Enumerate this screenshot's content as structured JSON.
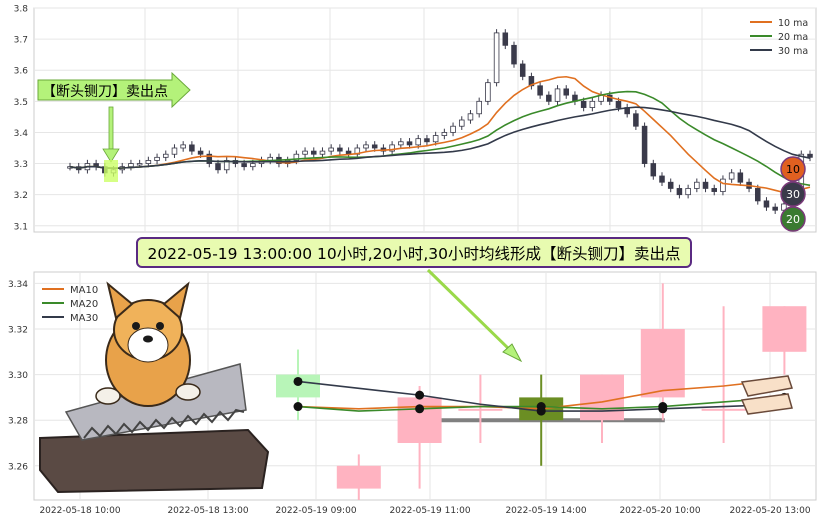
{
  "top_chart": {
    "type": "candlestick",
    "ylim": [
      3.08,
      3.8
    ],
    "yticks": [
      "3.1",
      "3.2",
      "3.3",
      "3.4",
      "3.5",
      "3.6",
      "3.7",
      "3.8"
    ],
    "legend": [
      {
        "label": "10 ma",
        "color": "#e07020"
      },
      {
        "label": "20 ma",
        "color": "#3a8a2a"
      },
      {
        "label": "30 ma",
        "color": "#333a4a"
      }
    ],
    "legend_position": "top-right",
    "grid": true,
    "signal_label": "【断头铡刀】卖出点",
    "ma_badges": [
      "10",
      "30",
      "20"
    ],
    "ma_badge_colors": [
      "#e06020",
      "#3a3a4a",
      "#3a7a30"
    ],
    "close_series": [
      3.29,
      3.28,
      3.3,
      3.29,
      3.27,
      3.28,
      3.29,
      3.3,
      3.3,
      3.31,
      3.32,
      3.33,
      3.35,
      3.36,
      3.34,
      3.33,
      3.3,
      3.28,
      3.31,
      3.3,
      3.29,
      3.3,
      3.31,
      3.32,
      3.3,
      3.31,
      3.33,
      3.34,
      3.33,
      3.34,
      3.35,
      3.34,
      3.33,
      3.35,
      3.36,
      3.35,
      3.34,
      3.36,
      3.37,
      3.36,
      3.38,
      3.37,
      3.39,
      3.4,
      3.42,
      3.44,
      3.46,
      3.5,
      3.56,
      3.72,
      3.68,
      3.62,
      3.58,
      3.55,
      3.52,
      3.5,
      3.54,
      3.52,
      3.5,
      3.48,
      3.5,
      3.52,
      3.5,
      3.48,
      3.46,
      3.42,
      3.3,
      3.26,
      3.24,
      3.22,
      3.2,
      3.22,
      3.24,
      3.22,
      3.21,
      3.25,
      3.27,
      3.24,
      3.22,
      3.18,
      3.16,
      3.15,
      3.17,
      3.2,
      3.33,
      3.32
    ]
  },
  "chart_data": {
    "type": "candlestick",
    "ylim": [
      3.245,
      3.345
    ],
    "yticks": [
      "3.26",
      "3.28",
      "3.30",
      "3.32",
      "3.34"
    ],
    "xticks": [
      "2022-05-18 10:00",
      "2022-05-18 13:00",
      "2022-05-19 09:00",
      "2022-05-19 11:00",
      "2022-05-19 14:00",
      "2022-05-20 10:00",
      "2022-05-20 13:00"
    ],
    "legend": [
      {
        "label": "MA10",
        "color": "#e07020"
      },
      {
        "label": "MA20",
        "color": "#3a8a2a"
      },
      {
        "label": "MA30",
        "color": "#333a4a"
      }
    ],
    "legend_position": "top-left",
    "grid": true,
    "candles": [
      {
        "x": 1.0,
        "open": 3.29,
        "close": 3.3,
        "high": 3.311,
        "low": 3.28,
        "color": "#b8f5b8"
      },
      {
        "x": 2.0,
        "open": 3.26,
        "close": 3.25,
        "high": 3.265,
        "low": 3.245,
        "color": "#ffb3c1"
      },
      {
        "x": 3.0,
        "open": 3.27,
        "close": 3.29,
        "high": 3.295,
        "low": 3.25,
        "color": "#ffb3c1"
      },
      {
        "x": 4.0,
        "open": 3.285,
        "close": 3.285,
        "high": 3.3,
        "low": 3.27,
        "color": "#ffb3c1"
      },
      {
        "x": 5.0,
        "open": 3.28,
        "close": 3.29,
        "high": 3.3,
        "low": 3.26,
        "color": "#6b8e23"
      },
      {
        "x": 6.0,
        "open": 3.28,
        "close": 3.3,
        "high": 3.3,
        "low": 3.27,
        "color": "#ffb3c1"
      },
      {
        "x": 7.0,
        "open": 3.29,
        "close": 3.32,
        "high": 3.34,
        "low": 3.28,
        "color": "#ffb3c1"
      },
      {
        "x": 8.0,
        "open": 3.285,
        "close": 3.285,
        "high": 3.33,
        "low": 3.27,
        "color": "#ffb3c1"
      },
      {
        "x": 9.0,
        "open": 3.31,
        "close": 3.33,
        "high": 3.33,
        "low": 3.3,
        "color": "#ffb3c1"
      }
    ],
    "series": [
      {
        "name": "MA10",
        "x": [
          1,
          2,
          3,
          4,
          5,
          6,
          7,
          8,
          9
        ],
        "values": [
          3.286,
          3.285,
          3.286,
          3.286,
          3.285,
          3.288,
          3.293,
          3.295,
          3.298
        ]
      },
      {
        "name": "MA20",
        "x": [
          1,
          2,
          3,
          4,
          5,
          6,
          7,
          8,
          9
        ],
        "values": [
          3.286,
          3.284,
          3.285,
          3.286,
          3.286,
          3.285,
          3.286,
          3.288,
          3.29
        ]
      },
      {
        "name": "MA30",
        "x": [
          1,
          2,
          3,
          4,
          5,
          6,
          7,
          8,
          9
        ],
        "values": [
          3.297,
          3.294,
          3.291,
          3.287,
          3.284,
          3.284,
          3.285,
          3.286,
          3.287
        ]
      }
    ],
    "guide_level": 3.28,
    "callout": "2022-05-19 13:00:00 10小时,20小时,30小时均线形成【断头铡刀】卖出点"
  }
}
